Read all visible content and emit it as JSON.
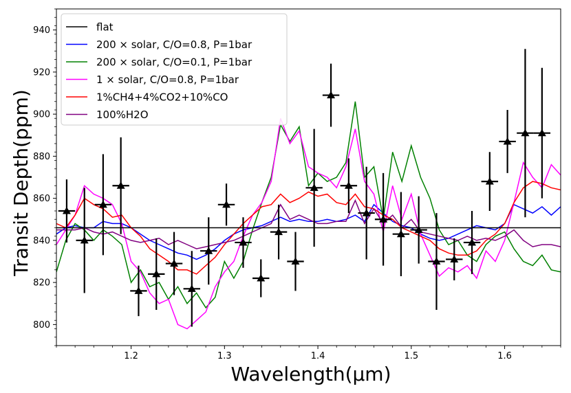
{
  "chart_data": {
    "type": "line",
    "title": "",
    "xlabel": "Wavelength(μm)",
    "ylabel": "Transit Depth(ppm)",
    "xlim": [
      1.12,
      1.66
    ],
    "ylim": [
      790,
      950
    ],
    "xticks": [
      1.2,
      1.3,
      1.4,
      1.5,
      1.6
    ],
    "yticks": [
      800,
      820,
      840,
      860,
      880,
      900,
      920,
      940
    ],
    "xtick_labels": [
      "1.2",
      "1.3",
      "1.4",
      "1.5",
      "1.6"
    ],
    "ytick_labels": [
      "800",
      "820",
      "840",
      "860",
      "880",
      "900",
      "920",
      "940"
    ],
    "legend_position": "top-left",
    "series": [
      {
        "name": "flat",
        "color": "#000000",
        "x": [
          1.12,
          1.66
        ],
        "y": [
          846,
          846
        ]
      },
      {
        "name": "200 × solar, C/O=0.8, P=1bar",
        "color": "#0000ff",
        "x": [
          1.12,
          1.13,
          1.14,
          1.15,
          1.16,
          1.17,
          1.18,
          1.19,
          1.2,
          1.21,
          1.22,
          1.23,
          1.24,
          1.25,
          1.26,
          1.27,
          1.28,
          1.29,
          1.3,
          1.31,
          1.32,
          1.33,
          1.34,
          1.35,
          1.36,
          1.37,
          1.38,
          1.39,
          1.4,
          1.41,
          1.42,
          1.43,
          1.44,
          1.45,
          1.46,
          1.47,
          1.48,
          1.49,
          1.5,
          1.51,
          1.52,
          1.53,
          1.54,
          1.55,
          1.56,
          1.57,
          1.58,
          1.59,
          1.6,
          1.61,
          1.62,
          1.63,
          1.64,
          1.65,
          1.66
        ],
        "y": [
          843,
          846,
          847,
          846,
          846,
          849,
          848,
          848,
          846,
          843,
          840,
          838,
          836,
          834,
          833,
          831,
          833,
          836,
          840,
          843,
          845,
          846,
          847,
          849,
          851,
          849,
          850,
          849,
          849,
          850,
          849,
          850,
          852,
          849,
          857,
          853,
          849,
          847,
          846,
          843,
          841,
          840,
          841,
          843,
          845,
          847,
          846,
          845,
          848,
          857,
          855,
          853,
          856,
          852,
          856
        ]
      },
      {
        "name": "200 × solar, C/O=0.1, P=1bar",
        "color": "#008000",
        "x": [
          1.12,
          1.13,
          1.14,
          1.15,
          1.16,
          1.17,
          1.18,
          1.19,
          1.2,
          1.21,
          1.22,
          1.23,
          1.24,
          1.25,
          1.26,
          1.27,
          1.28,
          1.29,
          1.3,
          1.31,
          1.32,
          1.33,
          1.34,
          1.35,
          1.36,
          1.37,
          1.38,
          1.39,
          1.4,
          1.41,
          1.42,
          1.43,
          1.44,
          1.45,
          1.46,
          1.47,
          1.48,
          1.49,
          1.5,
          1.51,
          1.52,
          1.53,
          1.54,
          1.55,
          1.56,
          1.57,
          1.58,
          1.59,
          1.6,
          1.61,
          1.62,
          1.63,
          1.64,
          1.65,
          1.66
        ],
        "y": [
          825,
          840,
          848,
          845,
          840,
          845,
          842,
          838,
          820,
          826,
          818,
          820,
          812,
          818,
          810,
          815,
          808,
          813,
          830,
          822,
          830,
          845,
          858,
          870,
          895,
          887,
          894,
          866,
          872,
          868,
          870,
          877,
          906,
          870,
          875,
          850,
          882,
          868,
          885,
          870,
          860,
          845,
          838,
          840,
          833,
          830,
          838,
          842,
          844,
          836,
          830,
          828,
          833,
          826,
          825
        ]
      },
      {
        "name": "1 × solar, C/O=0.8, P=1bar",
        "color": "#ff00ff",
        "x": [
          1.12,
          1.13,
          1.14,
          1.15,
          1.16,
          1.17,
          1.18,
          1.19,
          1.2,
          1.21,
          1.22,
          1.23,
          1.24,
          1.25,
          1.26,
          1.27,
          1.28,
          1.29,
          1.3,
          1.31,
          1.32,
          1.33,
          1.34,
          1.35,
          1.36,
          1.37,
          1.38,
          1.39,
          1.4,
          1.41,
          1.42,
          1.43,
          1.44,
          1.45,
          1.46,
          1.47,
          1.48,
          1.49,
          1.5,
          1.51,
          1.52,
          1.53,
          1.54,
          1.55,
          1.56,
          1.57,
          1.58,
          1.59,
          1.6,
          1.61,
          1.62,
          1.63,
          1.64,
          1.65,
          1.66
        ],
        "y": [
          838,
          845,
          852,
          866,
          862,
          860,
          857,
          848,
          830,
          825,
          815,
          810,
          812,
          800,
          798,
          802,
          806,
          818,
          825,
          830,
          842,
          852,
          858,
          868,
          898,
          886,
          892,
          875,
          872,
          870,
          865,
          875,
          893,
          868,
          862,
          844,
          866,
          850,
          862,
          843,
          833,
          823,
          827,
          825,
          828,
          822,
          835,
          830,
          840,
          858,
          877,
          870,
          865,
          876,
          871
        ]
      },
      {
        "name": "1%CH4+4%CO2+10%CO",
        "color": "#ff0000",
        "x": [
          1.12,
          1.13,
          1.14,
          1.15,
          1.16,
          1.17,
          1.18,
          1.19,
          1.2,
          1.21,
          1.22,
          1.23,
          1.24,
          1.25,
          1.26,
          1.27,
          1.28,
          1.29,
          1.3,
          1.31,
          1.32,
          1.33,
          1.34,
          1.35,
          1.36,
          1.37,
          1.38,
          1.39,
          1.4,
          1.41,
          1.42,
          1.43,
          1.44,
          1.45,
          1.46,
          1.47,
          1.48,
          1.49,
          1.5,
          1.51,
          1.52,
          1.53,
          1.54,
          1.55,
          1.56,
          1.57,
          1.58,
          1.59,
          1.6,
          1.61,
          1.62,
          1.63,
          1.64,
          1.65,
          1.66
        ],
        "y": [
          848,
          846,
          852,
          860,
          857,
          855,
          851,
          852,
          846,
          842,
          836,
          833,
          830,
          826,
          826,
          824,
          828,
          832,
          838,
          843,
          848,
          852,
          856,
          857,
          862,
          858,
          860,
          863,
          861,
          862,
          858,
          857,
          862,
          856,
          855,
          852,
          850,
          846,
          844,
          842,
          840,
          836,
          834,
          833,
          833,
          835,
          840,
          843,
          848,
          858,
          865,
          868,
          867,
          865,
          864
        ]
      },
      {
        "name": "100%H2O",
        "color": "#800080",
        "x": [
          1.12,
          1.13,
          1.14,
          1.15,
          1.16,
          1.17,
          1.18,
          1.19,
          1.2,
          1.21,
          1.22,
          1.23,
          1.24,
          1.25,
          1.26,
          1.27,
          1.28,
          1.29,
          1.3,
          1.31,
          1.32,
          1.33,
          1.34,
          1.35,
          1.36,
          1.37,
          1.38,
          1.39,
          1.4,
          1.41,
          1.42,
          1.43,
          1.44,
          1.45,
          1.46,
          1.47,
          1.48,
          1.49,
          1.5,
          1.51,
          1.52,
          1.53,
          1.54,
          1.55,
          1.56,
          1.57,
          1.58,
          1.59,
          1.6,
          1.61,
          1.62,
          1.63,
          1.64,
          1.65,
          1.66
        ],
        "y": [
          845,
          845,
          845,
          846,
          844,
          843,
          844,
          842,
          840,
          839,
          840,
          841,
          838,
          840,
          838,
          836,
          837,
          838,
          839,
          840,
          842,
          844,
          846,
          848,
          857,
          850,
          852,
          850,
          848,
          848,
          849,
          849,
          859,
          848,
          855,
          848,
          852,
          846,
          850,
          844,
          843,
          842,
          841,
          840,
          842,
          840,
          841,
          840,
          842,
          845,
          840,
          837,
          838,
          838,
          837
        ]
      },
      {
        "name": "data",
        "color": "#000000",
        "marker": "triangle",
        "kind": "errorbar",
        "x": [
          1.131,
          1.15,
          1.17,
          1.189,
          1.208,
          1.227,
          1.246,
          1.265,
          1.283,
          1.302,
          1.32,
          1.339,
          1.358,
          1.376,
          1.396,
          1.414,
          1.433,
          1.452,
          1.47,
          1.489,
          1.508,
          1.527,
          1.546,
          1.565,
          1.584,
          1.603,
          1.622,
          1.64
        ],
        "y": [
          854,
          840,
          857,
          866,
          816,
          824,
          829,
          817,
          835,
          857,
          839,
          822,
          844,
          830,
          865,
          909,
          866,
          853,
          850,
          843,
          845,
          830,
          831,
          839,
          868,
          887,
          891,
          891
        ],
        "yerr": [
          15,
          25,
          24,
          23,
          12,
          17,
          15,
          18,
          16,
          10,
          12,
          9,
          13,
          14,
          28,
          15,
          13,
          22,
          22,
          20,
          16,
          23,
          10,
          15,
          14,
          15,
          40,
          31
        ],
        "xerr": [
          0.009,
          0.009,
          0.009,
          0.009,
          0.009,
          0.009,
          0.009,
          0.009,
          0.009,
          0.009,
          0.009,
          0.009,
          0.009,
          0.009,
          0.009,
          0.009,
          0.009,
          0.009,
          0.009,
          0.009,
          0.009,
          0.009,
          0.009,
          0.009,
          0.009,
          0.009,
          0.009,
          0.009
        ]
      }
    ]
  }
}
